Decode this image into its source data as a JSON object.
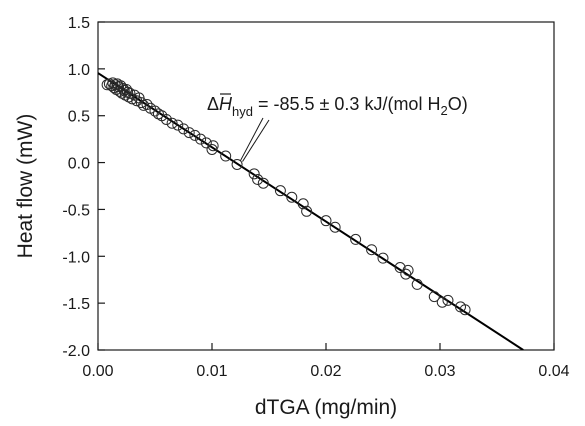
{
  "chart_data": {
    "type": "scatter",
    "xlabel": "dTGA (mg/min)",
    "ylabel": "Heat flow (mW)",
    "xlim": [
      0.0,
      0.04
    ],
    "ylim": [
      -2.0,
      1.5
    ],
    "x_ticks": [
      0.0,
      0.01,
      0.02,
      0.03,
      0.04
    ],
    "x_tick_labels": [
      "0.00",
      "0.01",
      "0.02",
      "0.03",
      "0.04"
    ],
    "y_ticks": [
      1.5,
      1.0,
      0.5,
      0.0,
      -0.5,
      -1.0,
      -1.5,
      -2.0
    ],
    "y_tick_labels": [
      "1.5",
      "1.0",
      "0.5",
      "0.0",
      "-0.5",
      "-1.0",
      "-1.5",
      "-2.0"
    ],
    "grid": false,
    "marker": "open-circle",
    "series": [
      {
        "points": [
          [
            0.0008,
            0.83
          ],
          [
            0.001,
            0.84
          ],
          [
            0.0012,
            0.82
          ],
          [
            0.0013,
            0.85
          ],
          [
            0.0014,
            0.8
          ],
          [
            0.0015,
            0.83
          ],
          [
            0.0016,
            0.78
          ],
          [
            0.0017,
            0.84
          ],
          [
            0.0018,
            0.81
          ],
          [
            0.0019,
            0.76
          ],
          [
            0.002,
            0.82
          ],
          [
            0.0021,
            0.74
          ],
          [
            0.0022,
            0.79
          ],
          [
            0.0023,
            0.77
          ],
          [
            0.0024,
            0.72
          ],
          [
            0.0025,
            0.78
          ],
          [
            0.0026,
            0.75
          ],
          [
            0.0027,
            0.7
          ],
          [
            0.0028,
            0.74
          ],
          [
            0.003,
            0.68
          ],
          [
            0.0032,
            0.72
          ],
          [
            0.0034,
            0.66
          ],
          [
            0.0036,
            0.69
          ],
          [
            0.0038,
            0.64
          ],
          [
            0.004,
            0.61
          ],
          [
            0.0043,
            0.62
          ],
          [
            0.0046,
            0.58
          ],
          [
            0.005,
            0.55
          ],
          [
            0.0053,
            0.52
          ],
          [
            0.0056,
            0.5
          ],
          [
            0.006,
            0.46
          ],
          [
            0.0065,
            0.42
          ],
          [
            0.007,
            0.4
          ],
          [
            0.0075,
            0.36
          ],
          [
            0.008,
            0.32
          ],
          [
            0.0085,
            0.29
          ],
          [
            0.009,
            0.25
          ],
          [
            0.0095,
            0.21
          ],
          [
            0.01,
            0.14
          ],
          [
            0.0101,
            0.18
          ],
          [
            0.0112,
            0.07
          ],
          [
            0.0122,
            -0.02
          ],
          [
            0.0137,
            -0.12
          ],
          [
            0.014,
            -0.18
          ],
          [
            0.0145,
            -0.22
          ],
          [
            0.016,
            -0.3
          ],
          [
            0.017,
            -0.37
          ],
          [
            0.018,
            -0.44
          ],
          [
            0.0183,
            -0.52
          ],
          [
            0.02,
            -0.62
          ],
          [
            0.0208,
            -0.69
          ],
          [
            0.0226,
            -0.82
          ],
          [
            0.024,
            -0.93
          ],
          [
            0.025,
            -1.02
          ],
          [
            0.0265,
            -1.12
          ],
          [
            0.027,
            -1.19
          ],
          [
            0.0272,
            -1.15
          ],
          [
            0.028,
            -1.3
          ],
          [
            0.0295,
            -1.43
          ],
          [
            0.0302,
            -1.49
          ],
          [
            0.0307,
            -1.47
          ],
          [
            0.0318,
            -1.54
          ],
          [
            0.0322,
            -1.57
          ]
        ]
      }
    ],
    "fit_line": {
      "x": [
        0.0,
        0.0373
      ],
      "y": [
        0.955,
        -2.0
      ]
    },
    "annotation": {
      "delta": "Δ",
      "symbol": "H",
      "subscript": "hyd",
      "value_text": " = -85.5 ± 0.3 kJ/(mol H",
      "h2o_subscript": "2",
      "suffix": "O)",
      "arrow_target": [
        0.0125,
        0.0
      ]
    }
  }
}
